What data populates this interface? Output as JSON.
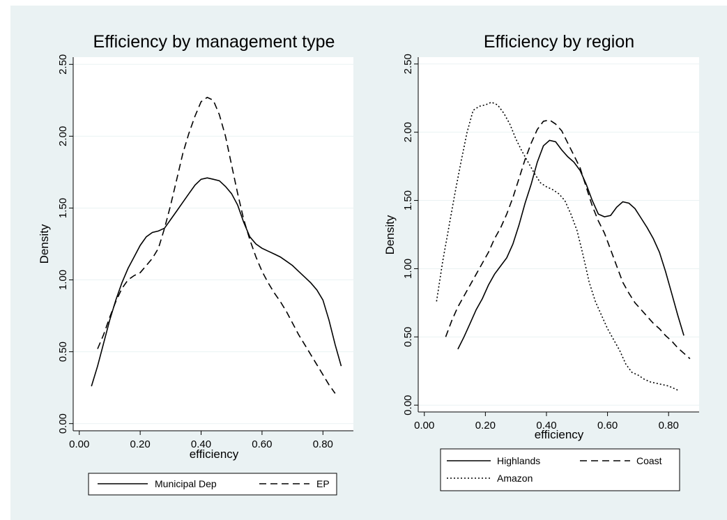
{
  "colors": {
    "background": "#eaf2f3",
    "plot_area": "#ffffff",
    "lines": "#000000"
  },
  "chart_data": [
    {
      "type": "line",
      "title": "Efficiency by management type",
      "xlabel": "efficiency",
      "ylabel": "Density",
      "xlim": [
        -0.02,
        0.9
      ],
      "ylim": [
        -0.05,
        2.55
      ],
      "xticks": [
        0.0,
        0.2,
        0.4,
        0.6,
        0.8
      ],
      "xtick_labels": [
        "0.00",
        "0.20",
        "0.40",
        "0.60",
        "0.80"
      ],
      "yticks": [
        0.0,
        0.5,
        1.0,
        1.5,
        2.0,
        2.5
      ],
      "ytick_labels": [
        "0.00",
        "0.50",
        "1.00",
        "1.50",
        "2.00",
        "2.50"
      ],
      "grid": true,
      "legend": "bottom",
      "series": [
        {
          "name": "Municipal Dep",
          "dash": "solid",
          "x": [
            0.04,
            0.06,
            0.08,
            0.1,
            0.12,
            0.14,
            0.16,
            0.18,
            0.2,
            0.22,
            0.24,
            0.26,
            0.28,
            0.3,
            0.32,
            0.34,
            0.36,
            0.38,
            0.4,
            0.42,
            0.44,
            0.46,
            0.48,
            0.5,
            0.52,
            0.54,
            0.56,
            0.58,
            0.6,
            0.62,
            0.64,
            0.66,
            0.68,
            0.7,
            0.72,
            0.74,
            0.76,
            0.78,
            0.8,
            0.82,
            0.84,
            0.86
          ],
          "y": [
            0.26,
            0.4,
            0.56,
            0.72,
            0.86,
            0.98,
            1.08,
            1.16,
            1.24,
            1.3,
            1.33,
            1.34,
            1.36,
            1.42,
            1.48,
            1.54,
            1.6,
            1.66,
            1.7,
            1.71,
            1.7,
            1.69,
            1.65,
            1.6,
            1.52,
            1.4,
            1.3,
            1.25,
            1.22,
            1.2,
            1.18,
            1.16,
            1.13,
            1.1,
            1.06,
            1.02,
            0.98,
            0.93,
            0.86,
            0.72,
            0.55,
            0.4
          ]
        },
        {
          "name": "EP",
          "dash": "long",
          "x": [
            0.06,
            0.08,
            0.1,
            0.12,
            0.14,
            0.16,
            0.18,
            0.2,
            0.22,
            0.24,
            0.26,
            0.28,
            0.3,
            0.32,
            0.34,
            0.36,
            0.38,
            0.4,
            0.42,
            0.44,
            0.46,
            0.48,
            0.5,
            0.52,
            0.54,
            0.56,
            0.58,
            0.6,
            0.62,
            0.64,
            0.66,
            0.68,
            0.7,
            0.72,
            0.74,
            0.76,
            0.78,
            0.8,
            0.82,
            0.84
          ],
          "y": [
            0.52,
            0.62,
            0.74,
            0.85,
            0.94,
            1.0,
            1.03,
            1.05,
            1.1,
            1.15,
            1.22,
            1.36,
            1.52,
            1.7,
            1.88,
            2.02,
            2.14,
            2.24,
            2.27,
            2.25,
            2.15,
            2.0,
            1.8,
            1.6,
            1.42,
            1.28,
            1.16,
            1.06,
            0.98,
            0.91,
            0.85,
            0.78,
            0.7,
            0.62,
            0.55,
            0.48,
            0.41,
            0.34,
            0.27,
            0.21
          ]
        }
      ]
    },
    {
      "type": "line",
      "title": "Efficiency by region",
      "xlabel": "efficiency",
      "ylabel": "Density",
      "xlim": [
        -0.02,
        0.9
      ],
      "ylim": [
        -0.05,
        2.55
      ],
      "xticks": [
        0.0,
        0.2,
        0.4,
        0.6,
        0.8
      ],
      "xtick_labels": [
        "0.00",
        "0.20",
        "0.40",
        "0.60",
        "0.80"
      ],
      "yticks": [
        0.0,
        0.5,
        1.0,
        1.5,
        2.0,
        2.5
      ],
      "ytick_labels": [
        "0.00",
        "0.50",
        "1.00",
        "1.50",
        "2.00",
        "2.50"
      ],
      "grid": true,
      "legend": "bottom",
      "series": [
        {
          "name": "Highlands",
          "dash": "solid",
          "x": [
            0.11,
            0.13,
            0.15,
            0.17,
            0.19,
            0.21,
            0.23,
            0.25,
            0.27,
            0.29,
            0.31,
            0.33,
            0.35,
            0.37,
            0.39,
            0.41,
            0.43,
            0.45,
            0.47,
            0.49,
            0.51,
            0.53,
            0.55,
            0.57,
            0.59,
            0.61,
            0.63,
            0.65,
            0.67,
            0.69,
            0.71,
            0.73,
            0.75,
            0.77,
            0.79,
            0.81,
            0.83,
            0.85
          ],
          "y": [
            0.41,
            0.5,
            0.6,
            0.7,
            0.78,
            0.88,
            0.96,
            1.02,
            1.08,
            1.18,
            1.32,
            1.48,
            1.62,
            1.78,
            1.9,
            1.94,
            1.93,
            1.87,
            1.82,
            1.78,
            1.72,
            1.62,
            1.5,
            1.4,
            1.38,
            1.39,
            1.45,
            1.49,
            1.48,
            1.44,
            1.37,
            1.3,
            1.22,
            1.12,
            0.98,
            0.82,
            0.66,
            0.51
          ]
        },
        {
          "name": "Coast",
          "dash": "long",
          "x": [
            0.07,
            0.09,
            0.11,
            0.13,
            0.15,
            0.17,
            0.19,
            0.21,
            0.23,
            0.25,
            0.27,
            0.29,
            0.31,
            0.33,
            0.35,
            0.37,
            0.39,
            0.41,
            0.43,
            0.45,
            0.47,
            0.49,
            0.51,
            0.53,
            0.55,
            0.57,
            0.59,
            0.61,
            0.63,
            0.65,
            0.67,
            0.69,
            0.71,
            0.73,
            0.75,
            0.77,
            0.79,
            0.81,
            0.83,
            0.85,
            0.87
          ],
          "y": [
            0.5,
            0.62,
            0.72,
            0.8,
            0.88,
            0.96,
            1.04,
            1.12,
            1.22,
            1.3,
            1.4,
            1.52,
            1.66,
            1.8,
            1.92,
            2.02,
            2.08,
            2.09,
            2.06,
            2.01,
            1.92,
            1.83,
            1.74,
            1.6,
            1.46,
            1.35,
            1.26,
            1.14,
            1.02,
            0.9,
            0.82,
            0.75,
            0.7,
            0.65,
            0.6,
            0.56,
            0.51,
            0.47,
            0.42,
            0.38,
            0.34
          ]
        },
        {
          "name": "Amazon",
          "dash": "dot",
          "x": [
            0.04,
            0.06,
            0.08,
            0.1,
            0.12,
            0.14,
            0.16,
            0.18,
            0.2,
            0.22,
            0.24,
            0.26,
            0.28,
            0.3,
            0.32,
            0.34,
            0.36,
            0.38,
            0.4,
            0.42,
            0.44,
            0.46,
            0.48,
            0.5,
            0.52,
            0.54,
            0.56,
            0.58,
            0.6,
            0.62,
            0.64,
            0.66,
            0.68,
            0.7,
            0.72,
            0.74,
            0.76,
            0.78,
            0.8,
            0.82,
            0.83
          ],
          "y": [
            0.76,
            1.05,
            1.3,
            1.55,
            1.78,
            2.0,
            2.16,
            2.19,
            2.2,
            2.22,
            2.2,
            2.14,
            2.06,
            1.95,
            1.86,
            1.78,
            1.7,
            1.63,
            1.6,
            1.58,
            1.55,
            1.5,
            1.4,
            1.28,
            1.1,
            0.9,
            0.76,
            0.66,
            0.56,
            0.48,
            0.4,
            0.3,
            0.24,
            0.22,
            0.19,
            0.17,
            0.16,
            0.15,
            0.14,
            0.12,
            0.11
          ]
        }
      ]
    }
  ]
}
